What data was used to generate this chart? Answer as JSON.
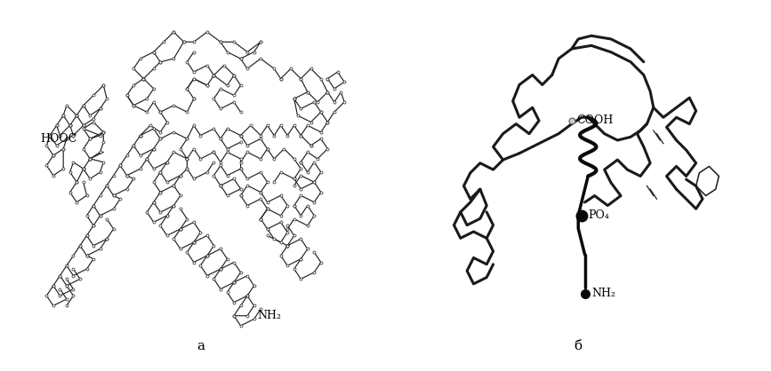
{
  "bg_color": "#ffffff",
  "line_color_a": "#222222",
  "line_color_b": "#1a1a1a",
  "label_a": "a",
  "label_b": "б",
  "hooc_label": "HOOC",
  "nh2_label_a": "NH₂",
  "cooh_label_b": "COOH",
  "po4_label": "PO₄",
  "nh2_label_b": "NH₂",
  "fontsize_labels": 8,
  "fontsize_sublabels": 11,
  "lw_a": 0.85,
  "ms_a": 2.2,
  "lw_b_thick": 2.2,
  "lw_b_thin": 1.1
}
